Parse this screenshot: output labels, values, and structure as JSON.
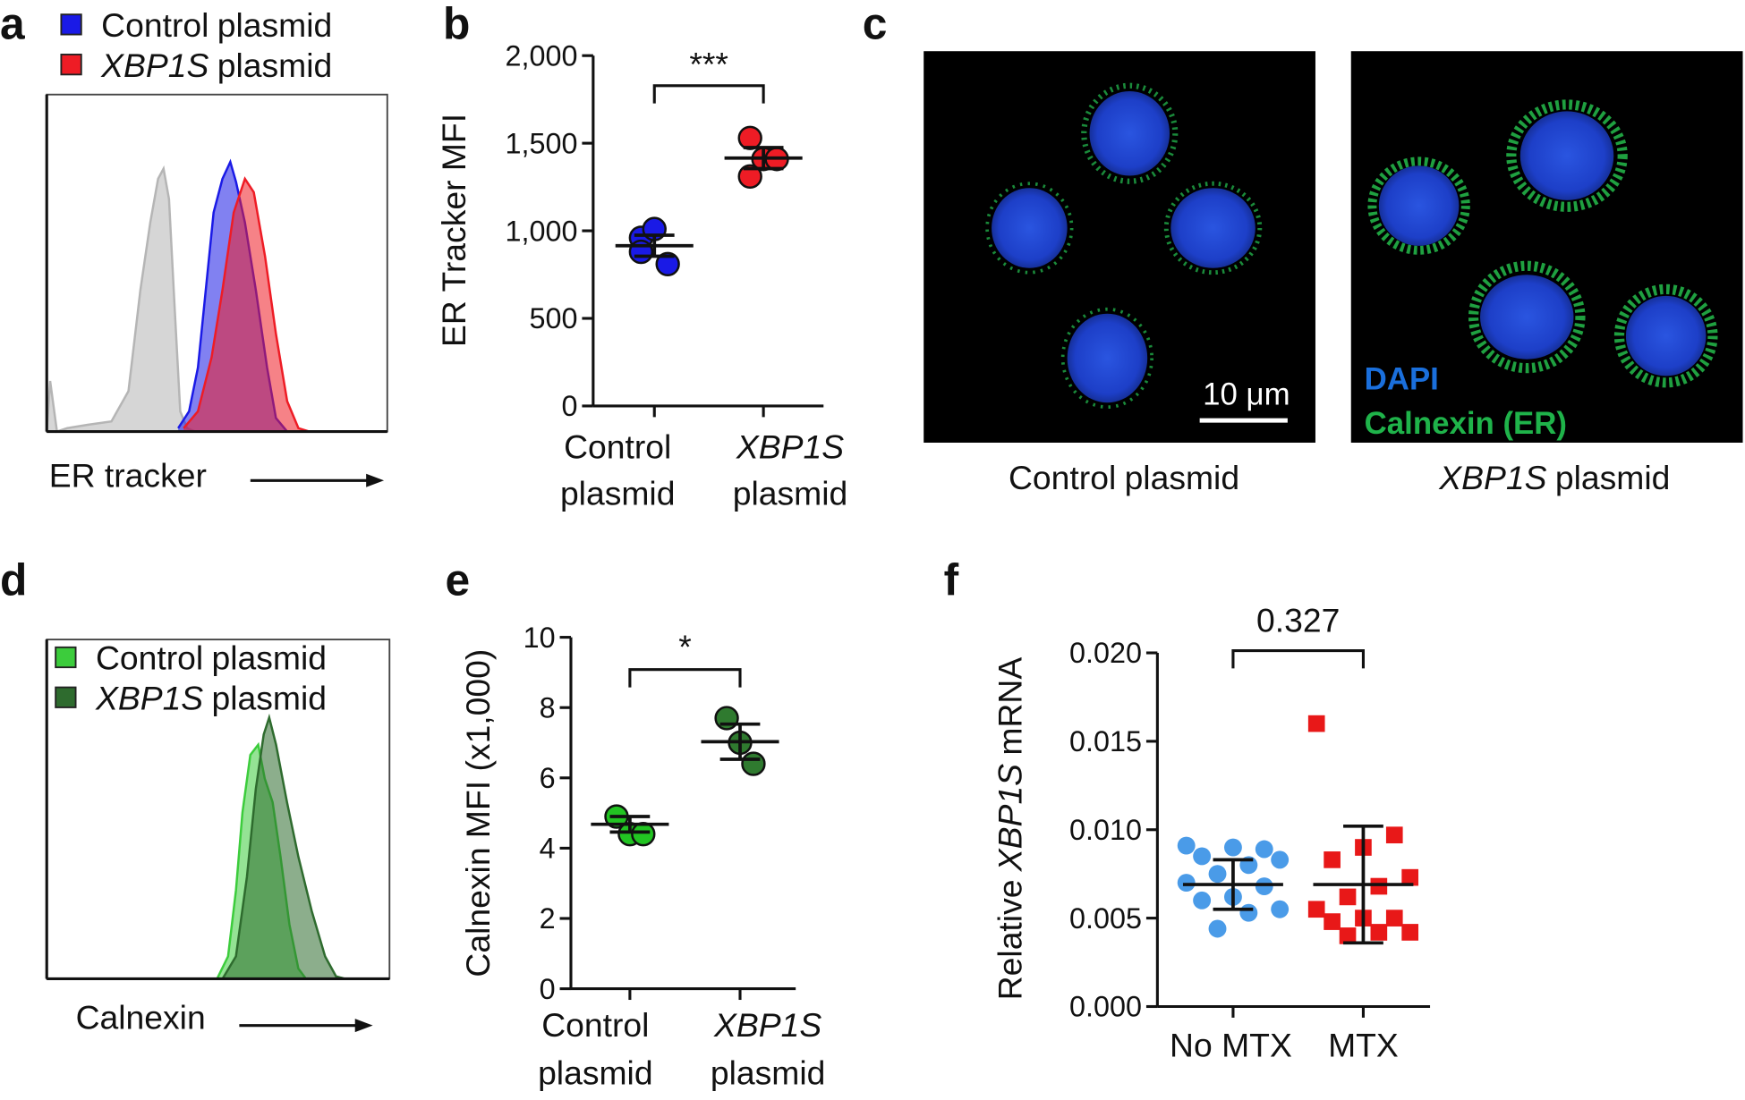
{
  "chart_data": [
    {
      "type": "area",
      "panel": "a",
      "xlabel": "ER tracker",
      "xlim": [
        0,
        100
      ],
      "ylim": [
        0,
        100
      ],
      "legend": "above",
      "series": [
        {
          "color": "#b5b5b5",
          "x": [
            0,
            1,
            3,
            6,
            12,
            19,
            24,
            27.5,
            30.4,
            32.7,
            34.3,
            35.9,
            37.6,
            39.2,
            41.2,
            43.5,
            100
          ],
          "values": [
            0,
            15,
            0,
            1,
            2,
            3,
            12,
            42,
            62,
            75,
            78,
            69,
            36,
            6,
            1,
            0,
            0
          ]
        },
        {
          "name": [
            "Control",
            "plasmid"
          ],
          "color": "#1a1ae6",
          "x": [
            38.6,
            41.8,
            44.4,
            46.7,
            49,
            51.6,
            53.9,
            55.6,
            58.2,
            61.4,
            64.7,
            67.3,
            70.6
          ],
          "values": [
            1,
            6,
            19,
            42,
            65,
            75,
            80,
            74,
            62,
            42,
            19,
            4,
            0
          ]
        },
        {
          "name": [
            "XBP1S",
            "plasmid"
          ],
          "color": "#ee1c25",
          "x": [
            40.2,
            44.4,
            48.4,
            51.6,
            54.9,
            58.2,
            60.8,
            64.1,
            67.3,
            70.6,
            73.9,
            77.1
          ],
          "values": [
            1,
            6,
            22,
            42,
            65,
            75,
            71,
            52,
            29,
            9,
            1,
            0
          ]
        }
      ]
    },
    {
      "type": "dot",
      "panel": "b",
      "ylabel": "ER Tracker MFI",
      "categories": [
        [
          "Control",
          "plasmid"
        ],
        [
          "XBP1S",
          "plasmid"
        ]
      ],
      "values": [
        [
          960,
          1010,
          810,
          880
        ],
        [
          1530,
          1410,
          1410,
          1310
        ]
      ],
      "means": [
        915,
        1415
      ],
      "errors": [
        60,
        60
      ],
      "colors": [
        "#1a1ae6",
        "#ee1c25"
      ],
      "markers": [
        "circle",
        "circle"
      ],
      "ylim": [
        0,
        2000
      ],
      "yticks": [
        0,
        500,
        {
          "value": 1000,
          "label": "1,000"
        },
        {
          "value": 1500,
          "label": "1,500"
        },
        {
          "value": 2000,
          "label": "2,000"
        }
      ],
      "annotation": "***"
    },
    {
      "type": "area",
      "panel": "d",
      "xlabel": "Calnexin",
      "xlim": [
        0,
        100
      ],
      "ylim": [
        0,
        100
      ],
      "legend": "upper-left",
      "series": [
        {
          "name": [
            "Control",
            "plasmid"
          ],
          "color": "#3ccc3c",
          "x": [
            49.7,
            52.9,
            55.2,
            57.1,
            59.4,
            61.7,
            63.6,
            65.9,
            68.2,
            70.8,
            73.4,
            75.6
          ],
          "values": [
            0,
            6.6,
            26,
            49,
            66,
            69,
            59,
            52,
            36,
            16,
            3,
            0
          ]
        },
        {
          "name": [
            "XBP1S",
            "plasmid"
          ],
          "color": "#2e6b2e",
          "x": [
            51.3,
            55.2,
            58.4,
            61,
            63.3,
            64.9,
            66.9,
            70.1,
            73.4,
            77.3,
            81.2,
            84.4,
            87
          ],
          "values": [
            0,
            6.6,
            30,
            56,
            72,
            77,
            69,
            52,
            36,
            20,
            6.6,
            0.7,
            0
          ]
        }
      ]
    },
    {
      "type": "dot",
      "panel": "e",
      "ylabel": "Calnexin MFI (x1,000)",
      "categories": [
        [
          "Control",
          "plasmid"
        ],
        [
          "XBP1S",
          "plasmid"
        ]
      ],
      "values": [
        [
          4.9,
          4.4,
          4.4
        ],
        [
          7.7,
          7.0,
          6.4
        ]
      ],
      "means": [
        4.68,
        7.03
      ],
      "errors": [
        0.22,
        0.5
      ],
      "colors": [
        "#22c422",
        "#2f7a2f"
      ],
      "markers": [
        "circle",
        "circle"
      ],
      "ylim": [
        0,
        10
      ],
      "yticks": [
        0,
        2,
        4,
        6,
        8,
        10
      ],
      "annotation": "*"
    },
    {
      "type": "dot",
      "panel": "f",
      "ylabel": [
        "Relative",
        "XBP1S",
        "mRNA"
      ],
      "categories": [
        [
          "No MTX"
        ],
        [
          "MTX"
        ]
      ],
      "values": [
        [
          0.0091,
          0.0089,
          0.009,
          0.0085,
          0.0083,
          0.008,
          0.0075,
          0.007,
          0.0068,
          0.0062,
          0.006,
          0.0055,
          0.0053,
          0.0044
        ],
        [
          0.016,
          0.0097,
          0.009,
          0.0083,
          0.0073,
          0.0068,
          0.0062,
          0.0055,
          0.005,
          0.005,
          0.0048,
          0.0042,
          0.0042,
          0.004
        ]
      ],
      "means": [
        0.0069,
        0.0069
      ],
      "errors": [
        0.0014,
        0.0033
      ],
      "colors": [
        "#4a9be8",
        "#e81818"
      ],
      "markers": [
        "circle",
        "square"
      ],
      "ylim": [
        0,
        0.02
      ],
      "yticks": [
        {
          "value": 0,
          "label": "0.000"
        },
        {
          "value": 0.005,
          "label": "0.005"
        },
        {
          "value": 0.01,
          "label": "0.010"
        },
        {
          "value": 0.015,
          "label": "0.015"
        },
        {
          "value": 0.02,
          "label": "0.020"
        }
      ],
      "annotation": "0.327"
    }
  ],
  "image_panel": {
    "panel": "c",
    "legend": [
      "DAPI",
      "Calnexin (ER)"
    ],
    "scale_bar": "10 μm",
    "captions": [
      [
        "Control",
        "plasmid"
      ],
      [
        "XBP1S",
        "plasmid"
      ]
    ]
  }
}
